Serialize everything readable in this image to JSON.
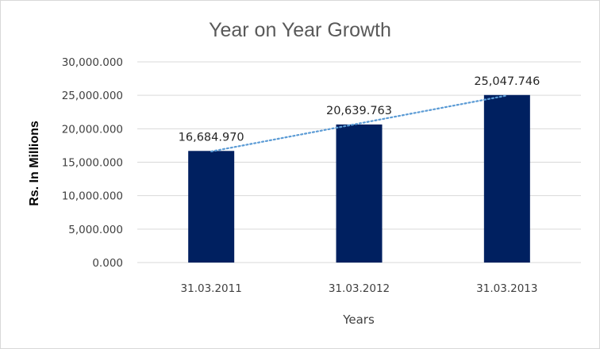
{
  "chart_data": {
    "type": "bar",
    "title": "Year on Year Growth",
    "xlabel": "Years",
    "ylabel": "Rs. In Millions",
    "categories": [
      "31.03.2011",
      "31.03.2012",
      "31.03.2013"
    ],
    "values": [
      16684.97,
      20639.763,
      25047.746
    ],
    "value_labels": [
      "16,684.970",
      "20,639.763",
      "25,047.746"
    ],
    "ylim": [
      0,
      30000
    ],
    "yticks": [
      0,
      5000,
      10000,
      15000,
      20000,
      25000,
      30000
    ],
    "ytick_labels": [
      "0.000",
      "5,000.000",
      "10,000.000",
      "15,000.000",
      "20,000.000",
      "25,000.000",
      "30,000.000"
    ],
    "grid": true,
    "trendline": "linear",
    "colors": {
      "bar": "#002060",
      "trendline": "#5b9bd5",
      "grid": "#d9d9d9"
    }
  }
}
